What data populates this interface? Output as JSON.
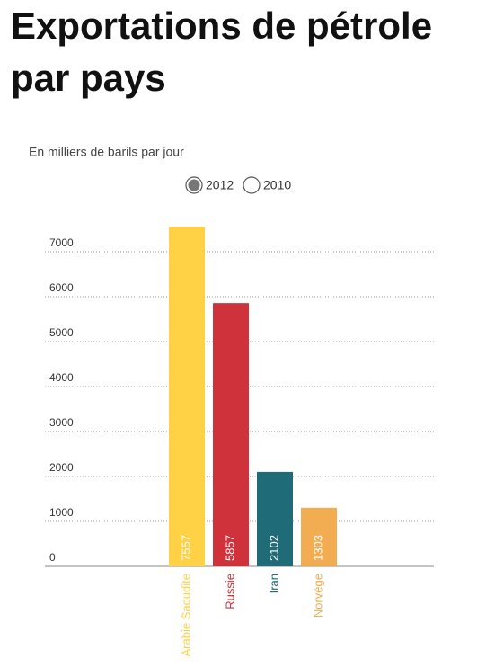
{
  "chart_data": {
    "type": "bar",
    "title_lines": [
      "Exportations de pétrole",
      "par pays"
    ],
    "subtitle": "En milliers de barils par jour",
    "options": [
      "2012",
      "2010"
    ],
    "selected": "2012",
    "categories": [
      "Arabie Saoudite",
      "Russie",
      "Iran",
      "Norvège"
    ],
    "values": [
      7557,
      5857,
      2102,
      1303
    ],
    "colors": [
      "#ffd144",
      "#d0323c",
      "#206b78",
      "#f2ad52"
    ],
    "ylim": [
      0,
      7600
    ],
    "yticks": [
      0,
      1000,
      2000,
      3000,
      4000,
      5000,
      6000,
      7000
    ],
    "grid": true
  }
}
